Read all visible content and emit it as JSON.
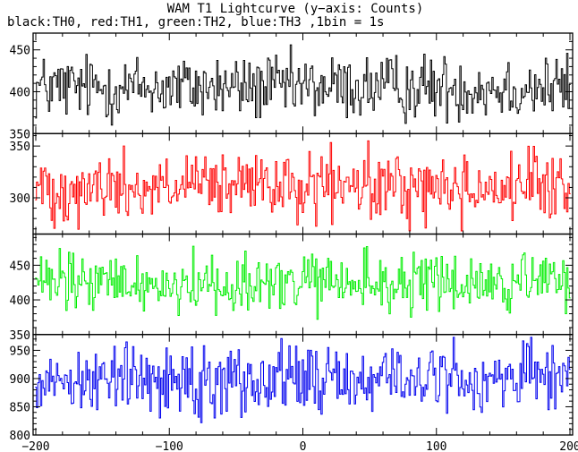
{
  "chart_data": {
    "type": "line",
    "title": "WAM T1 Lightcurve (y−axis: Counts)",
    "subtitle": "black:TH0, red:TH1, green:TH2, blue:TH3 ,1bin = 1s",
    "xlabel": "",
    "xlim": [
      -202,
      202
    ],
    "x_ticks": [
      -200,
      -100,
      0,
      100,
      200
    ],
    "x_tick_labels": [
      "−200",
      "−100",
      "0",
      "100",
      "200"
    ],
    "bin_seconds": 1,
    "panels": [
      {
        "name": "TH0",
        "color": "#000000",
        "ylim": [
          350,
          470
        ],
        "yticks": [
          350,
          400,
          450
        ],
        "ytick_labels": [
          "350",
          "400",
          "450"
        ],
        "mean": 405,
        "spread": 18,
        "min": 352,
        "max": 468
      },
      {
        "name": "TH1",
        "color": "#ff0000",
        "ylim": [
          265,
          362
        ],
        "yticks": [
          300,
          350
        ],
        "ytick_labels": [
          "300",
          "350"
        ],
        "mean": 310,
        "spread": 15,
        "min": 268,
        "max": 355
      },
      {
        "name": "TH2",
        "color": "#00ee00",
        "ylim": [
          350,
          495
        ],
        "yticks": [
          350,
          400,
          450
        ],
        "ytick_labels": [
          "350",
          "400",
          "450"
        ],
        "mean": 423,
        "spread": 20,
        "min": 352,
        "max": 490
      },
      {
        "name": "TH3",
        "color": "#0000ee",
        "ylim": [
          800,
          978
        ],
        "yticks": [
          800,
          850,
          900,
          950
        ],
        "ytick_labels": [
          "800",
          "850",
          "900",
          "950"
        ],
        "mean": 900,
        "spread": 28,
        "min": 803,
        "max": 973
      }
    ],
    "grid": false,
    "legend": "none"
  }
}
